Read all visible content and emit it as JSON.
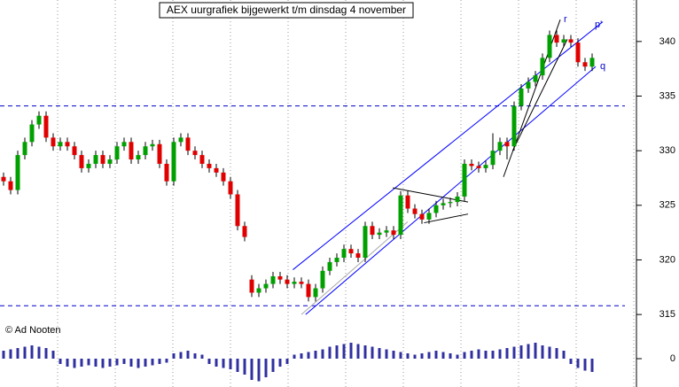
{
  "chart_data": {
    "type": "candlestick",
    "title": "AEX uurgrafiek bijgewerkt t/m dinsdag 4 november",
    "credit": "© Ad Nooten",
    "annotations": [
      "r",
      "p'",
      "q"
    ],
    "open": [
      327.6,
      327.2,
      326.4,
      329.6,
      330.8,
      332.4,
      333.2,
      331.2,
      330.4,
      330.8,
      330.4,
      329.6,
      328.4,
      328.8,
      329.6,
      328.8,
      329.2,
      330.4,
      330.8,
      329.2,
      329.6,
      330.4,
      330.6,
      328.8,
      327.2,
      330.8,
      331.2,
      330.0,
      329.6,
      328.8,
      328.4,
      328.0,
      327.2,
      326.0,
      323.1,
      318.2,
      317.0,
      317.4,
      317.8,
      318.5,
      318.2,
      317.8,
      318.0,
      317.8,
      316.6,
      317.4,
      319.0,
      319.8,
      320.2,
      321.0,
      320.6,
      320.2,
      323.1,
      322.3,
      322.5,
      322.7,
      322.3,
      325.9,
      324.7,
      324.2,
      323.7,
      324.3,
      325.0,
      325.2,
      325.3,
      325.8,
      328.8,
      328.6,
      328.4,
      328.7,
      330.0,
      330.8,
      330.4,
      334.1,
      335.7,
      336.3,
      336.9,
      338.5,
      340.6,
      339.9,
      340.2,
      339.9,
      338.1,
      337.7
    ],
    "high": [
      328.0,
      327.6,
      330.0,
      331.2,
      332.8,
      333.6,
      333.6,
      331.6,
      331.2,
      331.2,
      330.8,
      330.0,
      329.2,
      330.0,
      330.0,
      329.6,
      330.8,
      331.2,
      331.2,
      330.0,
      330.8,
      331.0,
      331.0,
      329.2,
      331.2,
      331.6,
      331.6,
      330.4,
      330.0,
      329.2,
      328.8,
      328.4,
      327.6,
      326.4,
      323.5,
      318.6,
      317.8,
      318.2,
      318.9,
      318.9,
      318.6,
      318.4,
      318.4,
      318.2,
      317.8,
      319.4,
      320.2,
      320.6,
      321.4,
      321.4,
      321.0,
      323.5,
      323.5,
      322.9,
      323.1,
      323.1,
      326.3,
      326.3,
      325.1,
      324.6,
      324.7,
      325.4,
      325.6,
      325.7,
      326.2,
      329.2,
      329.2,
      329.0,
      329.1,
      331.6,
      331.2,
      331.2,
      334.5,
      336.1,
      336.7,
      337.3,
      338.9,
      341.0,
      341.0,
      340.6,
      340.6,
      340.3,
      338.5,
      338.9
    ],
    "low": [
      326.8,
      326.0,
      326.0,
      329.2,
      330.4,
      332.0,
      330.8,
      330.0,
      330.0,
      330.0,
      329.2,
      328.0,
      328.0,
      328.4,
      328.4,
      328.4,
      328.8,
      330.0,
      328.8,
      328.8,
      329.2,
      330.0,
      328.4,
      326.8,
      326.8,
      330.4,
      329.6,
      329.2,
      328.4,
      328.0,
      327.6,
      326.8,
      325.6,
      322.7,
      321.7,
      316.6,
      316.6,
      317.0,
      317.4,
      317.8,
      317.4,
      317.4,
      317.4,
      316.2,
      316.2,
      317.0,
      318.6,
      319.4,
      319.8,
      320.2,
      319.8,
      319.8,
      321.9,
      321.9,
      322.1,
      321.9,
      321.9,
      324.3,
      323.8,
      323.3,
      323.3,
      323.9,
      324.6,
      324.8,
      324.9,
      325.4,
      328.2,
      328.0,
      328.0,
      328.3,
      329.6,
      329.2,
      330.0,
      333.7,
      335.3,
      335.9,
      336.5,
      338.1,
      339.5,
      339.5,
      339.5,
      337.7,
      337.3,
      337.3
    ],
    "close": [
      327.2,
      326.4,
      329.6,
      330.8,
      332.4,
      333.2,
      331.2,
      330.4,
      330.8,
      330.4,
      329.6,
      328.4,
      328.8,
      329.6,
      328.8,
      329.2,
      330.4,
      330.8,
      329.2,
      329.6,
      330.4,
      330.6,
      328.8,
      327.2,
      330.8,
      331.2,
      330.0,
      329.6,
      328.8,
      328.4,
      328.0,
      327.2,
      326.0,
      323.1,
      322.1,
      317.0,
      317.4,
      317.8,
      318.5,
      318.2,
      317.8,
      318.0,
      317.8,
      316.6,
      317.4,
      319.0,
      319.8,
      320.2,
      321.0,
      320.6,
      320.2,
      323.1,
      322.3,
      322.5,
      322.7,
      322.3,
      325.9,
      324.7,
      324.2,
      323.7,
      324.3,
      325.0,
      325.2,
      325.3,
      325.8,
      328.8,
      328.6,
      328.4,
      328.7,
      330.0,
      330.8,
      330.4,
      334.1,
      335.7,
      336.3,
      336.9,
      338.5,
      340.6,
      339.9,
      340.2,
      339.9,
      338.1,
      337.7,
      338.5
    ],
    "up_color": "#00a000",
    "down_color": "#e00000",
    "ylim": [
      314.2,
      343.8
    ],
    "yticks": [
      315,
      320,
      325,
      330,
      335,
      340
    ],
    "hlines": [
      {
        "value": 334.1,
        "color": "#0000cc"
      },
      {
        "value": 315.8,
        "color": "#0000cc"
      }
    ],
    "trendlines": [
      {
        "x": [
          40.8,
          84.5
        ],
        "y": [
          319.1,
          341.8
        ],
        "color": "#0000ff"
      },
      {
        "x": [
          42.6,
          83.5
        ],
        "y": [
          315.0,
          337.7
        ],
        "color": "#0000ff"
      },
      {
        "x": [
          42,
          57
        ],
        "y": [
          315.0,
          323.5
        ],
        "color": "#aaaaaa"
      },
      {
        "x": [
          54.9,
          65.5
        ],
        "y": [
          326.6,
          325.3
        ],
        "color": "#000000"
      },
      {
        "x": [
          59.3,
          65.5
        ],
        "y": [
          323.4,
          324.2
        ],
        "color": "#000000"
      },
      {
        "x": [
          70.5,
          78.5
        ],
        "y": [
          327.6,
          342.0
        ],
        "color": "#000000"
      },
      {
        "x": [
          71.8,
          79.5
        ],
        "y": [
          330.0,
          340.2
        ],
        "color": "#000000"
      }
    ],
    "indicator": {
      "type": "bar",
      "color": "#3030a0",
      "ylim": [
        -1,
        1
      ],
      "yticks": [
        0
      ],
      "values": [
        0.3,
        0.35,
        0.4,
        0.45,
        0.5,
        0.45,
        0.4,
        0.3,
        -0.2,
        -0.3,
        -0.35,
        -0.3,
        -0.25,
        -0.3,
        -0.35,
        -0.3,
        -0.25,
        -0.2,
        -0.3,
        -0.35,
        -0.3,
        -0.25,
        -0.2,
        -0.15,
        0.2,
        0.25,
        0.3,
        0.2,
        0.15,
        -0.2,
        -0.3,
        -0.35,
        -0.4,
        -0.5,
        -0.6,
        -0.8,
        -0.85,
        -0.7,
        -0.5,
        -0.3,
        -0.2,
        0.15,
        0.2,
        0.25,
        0.3,
        0.35,
        0.45,
        0.5,
        0.55,
        0.6,
        0.55,
        0.5,
        0.45,
        0.4,
        0.35,
        0.3,
        0.25,
        0.2,
        0.15,
        0.2,
        0.25,
        0.3,
        0.25,
        0.2,
        0.15,
        0.25,
        0.3,
        0.35,
        0.3,
        0.3,
        0.35,
        0.4,
        0.45,
        0.5,
        0.55,
        0.6,
        0.5,
        0.45,
        0.4,
        0.3,
        -0.2,
        -0.35,
        -0.45,
        -0.5
      ]
    }
  }
}
